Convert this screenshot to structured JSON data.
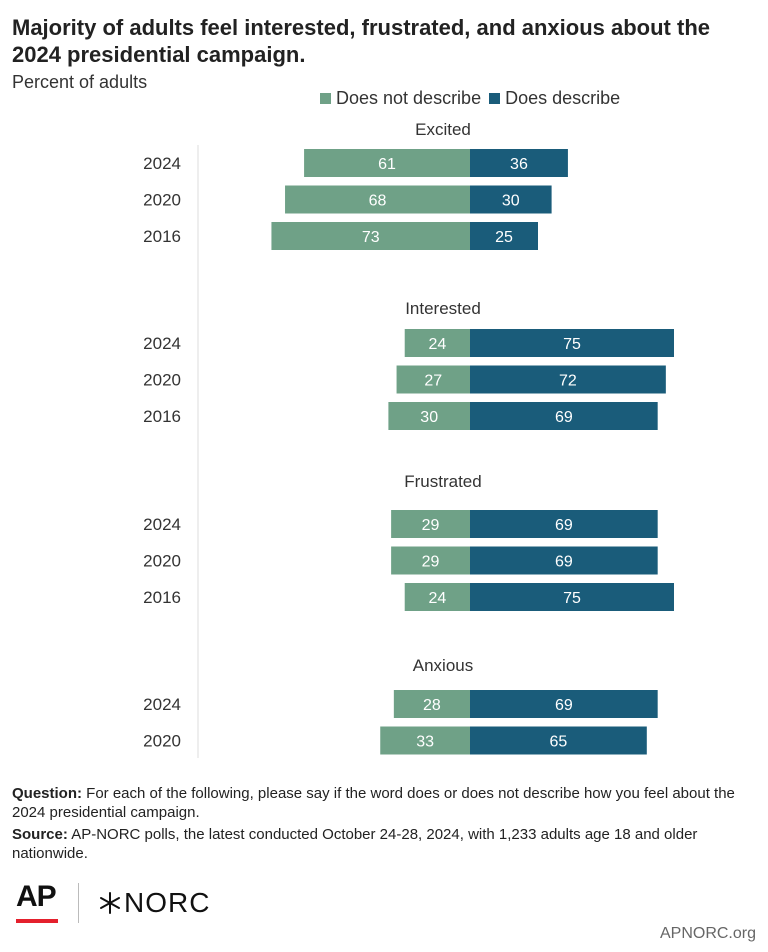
{
  "title": "Majority of adults feel interested, frustrated, and anxious about the 2024 presidential campaign.",
  "subtitle": "Percent of adults",
  "legend": {
    "not_describe": "Does not describe",
    "describe": "Does describe"
  },
  "colors": {
    "not_describe": "#6fa187",
    "describe": "#1a5c7a",
    "axis": "#dddddd",
    "ap_red": "#e4202d"
  },
  "chart_data": {
    "type": "bar",
    "subtype": "diverging-stacked",
    "series": [
      {
        "name": "Does not describe",
        "color": "#6fa187"
      },
      {
        "name": "Does describe",
        "color": "#1a5c7a"
      }
    ],
    "groups": [
      {
        "label": "Excited",
        "rows": [
          {
            "year": "2024",
            "not_describe": 61,
            "describe": 36
          },
          {
            "year": "2020",
            "not_describe": 68,
            "describe": 30
          },
          {
            "year": "2016",
            "not_describe": 73,
            "describe": 25
          }
        ]
      },
      {
        "label": "Interested",
        "rows": [
          {
            "year": "2024",
            "not_describe": 24,
            "describe": 75
          },
          {
            "year": "2020",
            "not_describe": 27,
            "describe": 72
          },
          {
            "year": "2016",
            "not_describe": 30,
            "describe": 69
          }
        ]
      },
      {
        "label": "Frustrated",
        "rows": [
          {
            "year": "2024",
            "not_describe": 29,
            "describe": 69
          },
          {
            "year": "2020",
            "not_describe": 29,
            "describe": 69
          },
          {
            "year": "2016",
            "not_describe": 24,
            "describe": 75
          }
        ]
      },
      {
        "label": "Anxious",
        "rows": [
          {
            "year": "2024",
            "not_describe": 28,
            "describe": 69
          },
          {
            "year": "2020",
            "not_describe": 33,
            "describe": 65
          }
        ]
      }
    ]
  },
  "notes": {
    "question_label": "Question:",
    "question_text": "For each of the following, please say if the word does or does not describe how you feel about the 2024 presidential campaign.",
    "source_label": "Source:",
    "source_text": "AP-NORC polls, the latest conducted October 24-28, 2024, with 1,233 adults age 18 and older nationwide."
  },
  "logos": {
    "ap": "AP",
    "norc": "NORC"
  },
  "site": "APNORC.org"
}
